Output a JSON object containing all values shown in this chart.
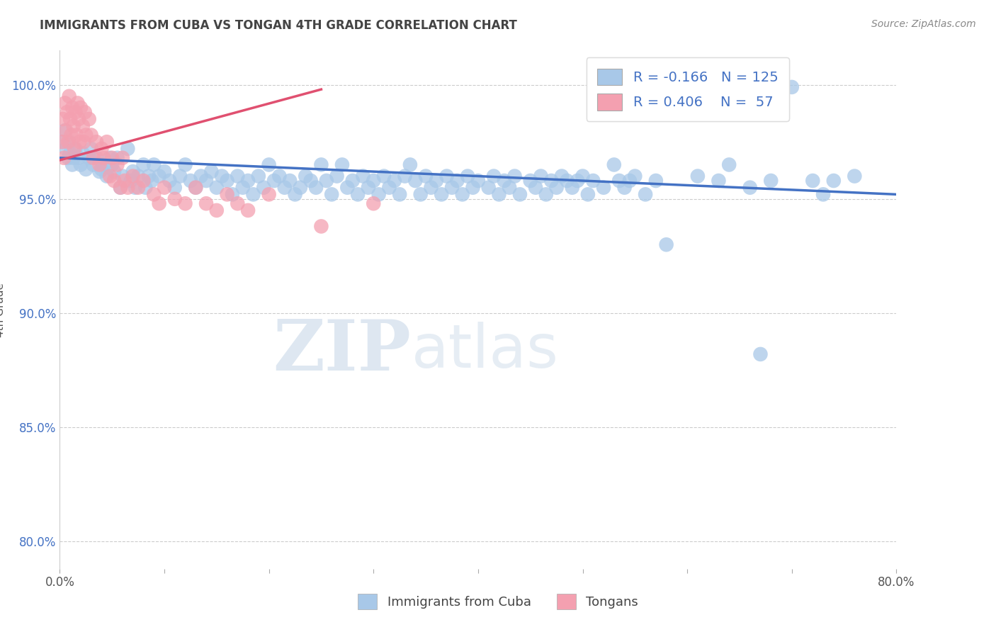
{
  "title": "IMMIGRANTS FROM CUBA VS TONGAN 4TH GRADE CORRELATION CHART",
  "source": "Source: ZipAtlas.com",
  "ylabel": "4th Grade",
  "xlim": [
    0.0,
    0.8
  ],
  "ylim": [
    0.788,
    1.015
  ],
  "xticks": [
    0.0,
    0.1,
    0.2,
    0.3,
    0.4,
    0.5,
    0.6,
    0.7,
    0.8
  ],
  "xtick_labels": [
    "0.0%",
    "",
    "",
    "",
    "",
    "",
    "",
    "",
    "80.0%"
  ],
  "yticks": [
    0.8,
    0.85,
    0.9,
    0.95,
    1.0
  ],
  "ytick_labels": [
    "80.0%",
    "85.0%",
    "90.0%",
    "95.0%",
    "100.0%"
  ],
  "legend_r_cuba": "-0.166",
  "legend_n_cuba": "125",
  "legend_r_tongan": "0.406",
  "legend_n_tongan": "57",
  "cuba_color": "#a8c8e8",
  "tongan_color": "#f4a0b0",
  "cuba_line_color": "#4472c4",
  "tongan_line_color": "#e05070",
  "watermark_zip": "ZIP",
  "watermark_atlas": "atlas",
  "cuba_points": [
    [
      0.003,
      0.975
    ],
    [
      0.005,
      0.98
    ],
    [
      0.006,
      0.972
    ],
    [
      0.008,
      0.968
    ],
    [
      0.009,
      0.975
    ],
    [
      0.01,
      0.97
    ],
    [
      0.012,
      0.965
    ],
    [
      0.013,
      0.968
    ],
    [
      0.015,
      0.972
    ],
    [
      0.018,
      0.968
    ],
    [
      0.02,
      0.965
    ],
    [
      0.022,
      0.97
    ],
    [
      0.025,
      0.963
    ],
    [
      0.028,
      0.968
    ],
    [
      0.03,
      0.972
    ],
    [
      0.032,
      0.965
    ],
    [
      0.035,
      0.968
    ],
    [
      0.038,
      0.962
    ],
    [
      0.04,
      0.963
    ],
    [
      0.042,
      0.965
    ],
    [
      0.045,
      0.96
    ],
    [
      0.048,
      0.968
    ],
    [
      0.05,
      0.965
    ],
    [
      0.052,
      0.962
    ],
    [
      0.055,
      0.968
    ],
    [
      0.058,
      0.955
    ],
    [
      0.06,
      0.96
    ],
    [
      0.065,
      0.972
    ],
    [
      0.068,
      0.958
    ],
    [
      0.07,
      0.962
    ],
    [
      0.072,
      0.955
    ],
    [
      0.075,
      0.96
    ],
    [
      0.08,
      0.965
    ],
    [
      0.082,
      0.955
    ],
    [
      0.085,
      0.96
    ],
    [
      0.088,
      0.958
    ],
    [
      0.09,
      0.965
    ],
    [
      0.095,
      0.96
    ],
    [
      0.1,
      0.962
    ],
    [
      0.105,
      0.958
    ],
    [
      0.11,
      0.955
    ],
    [
      0.115,
      0.96
    ],
    [
      0.12,
      0.965
    ],
    [
      0.125,
      0.958
    ],
    [
      0.13,
      0.955
    ],
    [
      0.135,
      0.96
    ],
    [
      0.14,
      0.958
    ],
    [
      0.145,
      0.962
    ],
    [
      0.15,
      0.955
    ],
    [
      0.155,
      0.96
    ],
    [
      0.16,
      0.958
    ],
    [
      0.165,
      0.952
    ],
    [
      0.17,
      0.96
    ],
    [
      0.175,
      0.955
    ],
    [
      0.18,
      0.958
    ],
    [
      0.185,
      0.952
    ],
    [
      0.19,
      0.96
    ],
    [
      0.195,
      0.955
    ],
    [
      0.2,
      0.965
    ],
    [
      0.205,
      0.958
    ],
    [
      0.21,
      0.96
    ],
    [
      0.215,
      0.955
    ],
    [
      0.22,
      0.958
    ],
    [
      0.225,
      0.952
    ],
    [
      0.23,
      0.955
    ],
    [
      0.235,
      0.96
    ],
    [
      0.24,
      0.958
    ],
    [
      0.245,
      0.955
    ],
    [
      0.25,
      0.965
    ],
    [
      0.255,
      0.958
    ],
    [
      0.26,
      0.952
    ],
    [
      0.265,
      0.96
    ],
    [
      0.27,
      0.965
    ],
    [
      0.275,
      0.955
    ],
    [
      0.28,
      0.958
    ],
    [
      0.285,
      0.952
    ],
    [
      0.29,
      0.96
    ],
    [
      0.295,
      0.955
    ],
    [
      0.3,
      0.958
    ],
    [
      0.305,
      0.952
    ],
    [
      0.31,
      0.96
    ],
    [
      0.315,
      0.955
    ],
    [
      0.32,
      0.958
    ],
    [
      0.325,
      0.952
    ],
    [
      0.33,
      0.96
    ],
    [
      0.335,
      0.965
    ],
    [
      0.34,
      0.958
    ],
    [
      0.345,
      0.952
    ],
    [
      0.35,
      0.96
    ],
    [
      0.355,
      0.955
    ],
    [
      0.36,
      0.958
    ],
    [
      0.365,
      0.952
    ],
    [
      0.37,
      0.96
    ],
    [
      0.375,
      0.955
    ],
    [
      0.38,
      0.958
    ],
    [
      0.385,
      0.952
    ],
    [
      0.39,
      0.96
    ],
    [
      0.395,
      0.955
    ],
    [
      0.4,
      0.958
    ],
    [
      0.41,
      0.955
    ],
    [
      0.415,
      0.96
    ],
    [
      0.42,
      0.952
    ],
    [
      0.425,
      0.958
    ],
    [
      0.43,
      0.955
    ],
    [
      0.435,
      0.96
    ],
    [
      0.44,
      0.952
    ],
    [
      0.45,
      0.958
    ],
    [
      0.455,
      0.955
    ],
    [
      0.46,
      0.96
    ],
    [
      0.465,
      0.952
    ],
    [
      0.47,
      0.958
    ],
    [
      0.475,
      0.955
    ],
    [
      0.48,
      0.96
    ],
    [
      0.485,
      0.958
    ],
    [
      0.49,
      0.955
    ],
    [
      0.495,
      0.958
    ],
    [
      0.5,
      0.96
    ],
    [
      0.505,
      0.952
    ],
    [
      0.51,
      0.958
    ],
    [
      0.52,
      0.955
    ],
    [
      0.53,
      0.965
    ],
    [
      0.535,
      0.958
    ],
    [
      0.54,
      0.955
    ],
    [
      0.545,
      0.958
    ],
    [
      0.55,
      0.96
    ],
    [
      0.56,
      0.952
    ],
    [
      0.57,
      0.958
    ],
    [
      0.58,
      0.93
    ],
    [
      0.61,
      0.96
    ],
    [
      0.63,
      0.958
    ],
    [
      0.64,
      0.965
    ],
    [
      0.66,
      0.955
    ],
    [
      0.68,
      0.958
    ],
    [
      0.7,
      0.999
    ],
    [
      0.72,
      0.958
    ],
    [
      0.73,
      0.952
    ],
    [
      0.74,
      0.958
    ],
    [
      0.76,
      0.96
    ],
    [
      0.67,
      0.882
    ]
  ],
  "tongan_points": [
    [
      0.002,
      0.975
    ],
    [
      0.003,
      0.985
    ],
    [
      0.004,
      0.968
    ],
    [
      0.005,
      0.992
    ],
    [
      0.006,
      0.98
    ],
    [
      0.007,
      0.988
    ],
    [
      0.008,
      0.975
    ],
    [
      0.009,
      0.995
    ],
    [
      0.01,
      0.985
    ],
    [
      0.011,
      0.978
    ],
    [
      0.012,
      0.99
    ],
    [
      0.013,
      0.982
    ],
    [
      0.014,
      0.972
    ],
    [
      0.015,
      0.988
    ],
    [
      0.016,
      0.978
    ],
    [
      0.017,
      0.992
    ],
    [
      0.018,
      0.985
    ],
    [
      0.019,
      0.975
    ],
    [
      0.02,
      0.99
    ],
    [
      0.022,
      0.982
    ],
    [
      0.023,
      0.975
    ],
    [
      0.024,
      0.988
    ],
    [
      0.025,
      0.978
    ],
    [
      0.028,
      0.985
    ],
    [
      0.03,
      0.978
    ],
    [
      0.032,
      0.968
    ],
    [
      0.035,
      0.975
    ],
    [
      0.038,
      0.965
    ],
    [
      0.04,
      0.972
    ],
    [
      0.042,
      0.968
    ],
    [
      0.045,
      0.975
    ],
    [
      0.048,
      0.96
    ],
    [
      0.05,
      0.968
    ],
    [
      0.052,
      0.958
    ],
    [
      0.055,
      0.965
    ],
    [
      0.058,
      0.955
    ],
    [
      0.06,
      0.968
    ],
    [
      0.062,
      0.958
    ],
    [
      0.065,
      0.955
    ],
    [
      0.07,
      0.96
    ],
    [
      0.075,
      0.955
    ],
    [
      0.08,
      0.958
    ],
    [
      0.09,
      0.952
    ],
    [
      0.095,
      0.948
    ],
    [
      0.1,
      0.955
    ],
    [
      0.11,
      0.95
    ],
    [
      0.12,
      0.948
    ],
    [
      0.13,
      0.955
    ],
    [
      0.14,
      0.948
    ],
    [
      0.15,
      0.945
    ],
    [
      0.16,
      0.952
    ],
    [
      0.17,
      0.948
    ],
    [
      0.18,
      0.945
    ],
    [
      0.2,
      0.952
    ],
    [
      0.25,
      0.938
    ],
    [
      0.3,
      0.948
    ]
  ]
}
